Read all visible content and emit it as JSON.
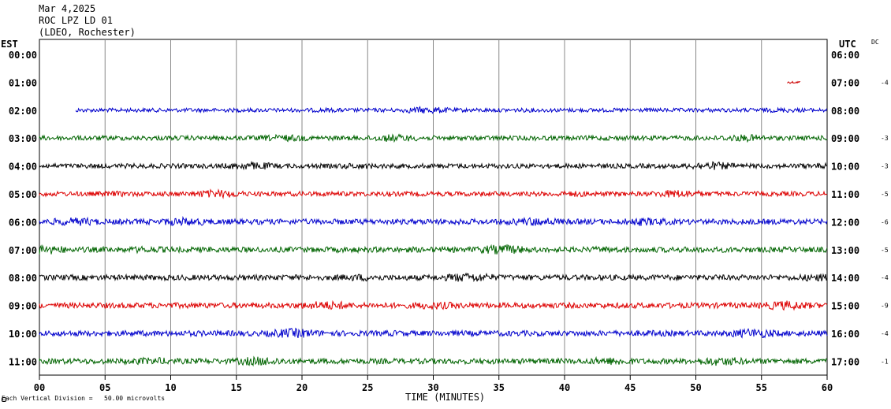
{
  "header": {
    "date": "Mar 4,2025",
    "station": "ROC LPZ LD 01",
    "network": "(LDEO, Rochester)"
  },
  "left_label": "EST",
  "right_label": "UTC",
  "dc_label": "DC",
  "footer": "Each Vertical Division =   50.00 microvolts",
  "chart_data": {
    "type": "line",
    "title": "",
    "xlabel": "TIME (MINUTES)",
    "xlim": [
      0,
      60
    ],
    "xticks": [
      "00",
      "05",
      "10",
      "15",
      "20",
      "25",
      "30",
      "35",
      "40",
      "45",
      "50",
      "55",
      "60"
    ],
    "grid": true,
    "rows": [
      {
        "est": "00:00",
        "utc": "06:00",
        "dc": "",
        "color": "#0000cc",
        "start": 0,
        "end": 0,
        "amplitude": 0
      },
      {
        "est": "01:00",
        "utc": "07:00",
        "dc": "-4",
        "color": "#cc0000",
        "start": 57,
        "end": 58,
        "amplitude": 1.5
      },
      {
        "est": "02:00",
        "utc": "08:00",
        "dc": "",
        "color": "#0000cc",
        "start": 2.8,
        "end": 60,
        "amplitude": 2.5
      },
      {
        "est": "03:00",
        "utc": "09:00",
        "dc": "-3",
        "color": "#006400",
        "start": 0,
        "end": 60,
        "amplitude": 3
      },
      {
        "est": "04:00",
        "utc": "10:00",
        "dc": "-3",
        "color": "#000000",
        "start": 0,
        "end": 60,
        "amplitude": 3
      },
      {
        "est": "05:00",
        "utc": "11:00",
        "dc": "-5",
        "color": "#dd0000",
        "start": 0,
        "end": 60,
        "amplitude": 3
      },
      {
        "est": "06:00",
        "utc": "12:00",
        "dc": "-6",
        "color": "#0000cc",
        "start": 0,
        "end": 60,
        "amplitude": 3.5
      },
      {
        "est": "07:00",
        "utc": "13:00",
        "dc": "-5",
        "color": "#006400",
        "start": 0,
        "end": 60,
        "amplitude": 3.5
      },
      {
        "est": "08:00",
        "utc": "14:00",
        "dc": "-4",
        "color": "#000000",
        "start": 0,
        "end": 60,
        "amplitude": 3.5
      },
      {
        "est": "09:00",
        "utc": "15:00",
        "dc": "-9",
        "color": "#dd0000",
        "start": 0,
        "end": 60,
        "amplitude": 3.5
      },
      {
        "est": "10:00",
        "utc": "16:00",
        "dc": "-4",
        "color": "#0000cc",
        "start": 0,
        "end": 60,
        "amplitude": 3.5
      },
      {
        "est": "11:00",
        "utc": "17:00",
        "dc": "-1",
        "color": "#006400",
        "start": 0,
        "end": 60,
        "amplitude": 3.5
      }
    ]
  }
}
